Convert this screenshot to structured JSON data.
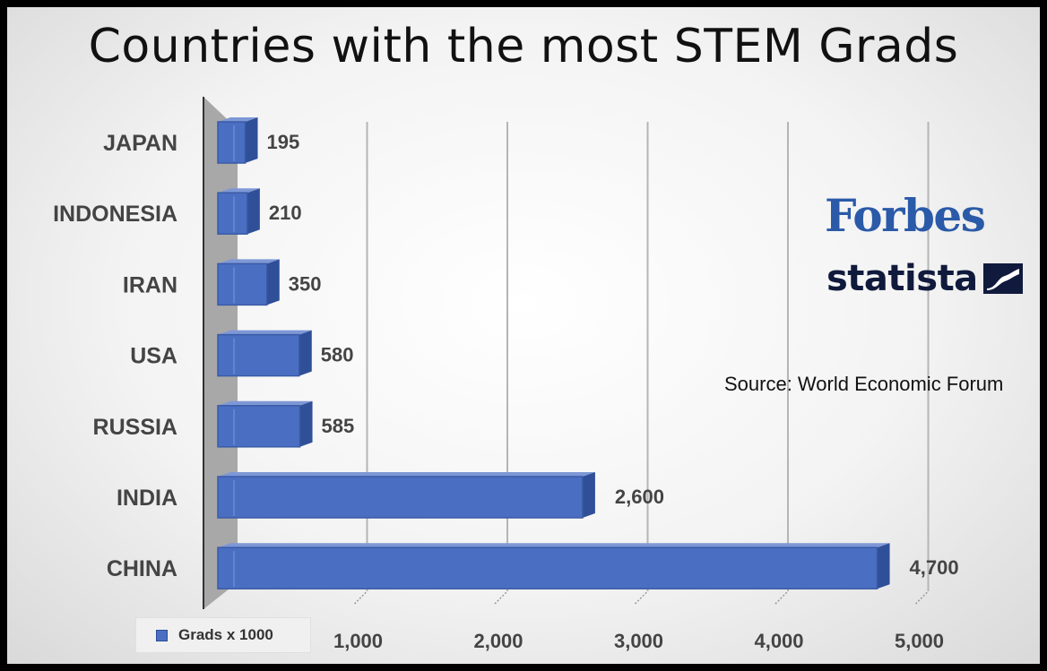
{
  "chart_data": {
    "type": "bar",
    "orientation": "horizontal",
    "title": "Countries with the most STEM Grads",
    "categories": [
      "JAPAN",
      "INDONESIA",
      "IRAN",
      "USA",
      "RUSSIA",
      "INDIA",
      "CHINA"
    ],
    "series": [
      {
        "name": "Grads x 1000",
        "values": [
          195,
          210,
          350,
          580,
          585,
          2600,
          4700
        ]
      }
    ],
    "value_labels": [
      "195",
      "210",
      "350",
      "580",
      "585",
      "2,600",
      "4,700"
    ],
    "x_ticks": [
      "1,000",
      "2,000",
      "3,000",
      "4,000",
      "5,000"
    ],
    "xlim": [
      0,
      5000
    ],
    "grid": true,
    "legend_position": "bottom-left",
    "bar_color": "#4a6fc2"
  },
  "legend": {
    "label": "Grads x 1000"
  },
  "logos": {
    "forbes": "Forbes",
    "statista": "statista"
  },
  "source_note": "Source: World Economic Forum"
}
